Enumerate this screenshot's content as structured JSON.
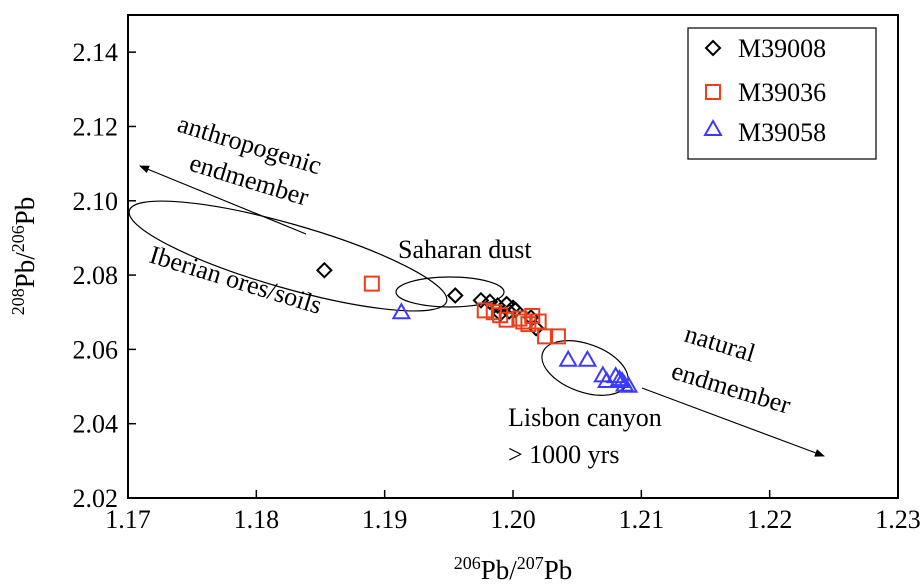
{
  "chart_data": {
    "type": "scatter",
    "title": "",
    "xlabel": {
      "base": "Pb",
      "num_sup": "206",
      "den_sup": "207"
    },
    "ylabel": {
      "base": "Pb",
      "num_sup": "208",
      "den_sup": "206"
    },
    "xlim": [
      1.17,
      1.23
    ],
    "ylim": [
      2.02,
      2.15
    ],
    "x_ticks": [
      1.17,
      1.18,
      1.19,
      1.2,
      1.21,
      1.22,
      1.23
    ],
    "y_ticks": [
      2.02,
      2.04,
      2.06,
      2.08,
      2.1,
      2.12,
      2.14
    ],
    "x_tick_labels": [
      "1.17",
      "1.18",
      "1.19",
      "1.20",
      "1.21",
      "1.22",
      "1.23"
    ],
    "y_tick_labels": [
      "2.02",
      "2.04",
      "2.06",
      "2.08",
      "2.10",
      "2.12",
      "2.14"
    ],
    "grid": false,
    "legend_position": "top-right",
    "series": [
      {
        "name": "M39008",
        "marker": "diamond",
        "color": "#000000",
        "points": [
          [
            1.1853,
            2.0813
          ],
          [
            1.1955,
            2.0745
          ],
          [
            1.1975,
            2.0732
          ],
          [
            1.1982,
            2.0728
          ],
          [
            1.1988,
            2.0718
          ],
          [
            1.199,
            2.0696
          ],
          [
            1.1995,
            2.0722
          ],
          [
            1.1997,
            2.0702
          ],
          [
            1.2,
            2.0712
          ],
          [
            1.2002,
            2.0706
          ],
          [
            1.2014,
            2.0686
          ],
          [
            1.2018,
            2.0657
          ]
        ]
      },
      {
        "name": "M39036",
        "marker": "square",
        "color": "#e8401c",
        "points": [
          [
            1.189,
            2.0777
          ],
          [
            1.1978,
            2.0705
          ],
          [
            1.1985,
            2.07
          ],
          [
            1.199,
            2.0692
          ],
          [
            1.1995,
            2.068
          ],
          [
            1.2005,
            2.0683
          ],
          [
            1.2008,
            2.0675
          ],
          [
            1.2012,
            2.0668
          ],
          [
            1.2015,
            2.069
          ],
          [
            1.202,
            2.0675
          ],
          [
            1.2025,
            2.0635
          ],
          [
            1.2035,
            2.0635
          ]
        ]
      },
      {
        "name": "M39058",
        "marker": "triangle",
        "color": "#3b3bff",
        "points": [
          [
            1.1913,
            2.07
          ],
          [
            1.2043,
            2.0572
          ],
          [
            1.2058,
            2.0572
          ],
          [
            1.207,
            2.053
          ],
          [
            1.2073,
            2.0515
          ],
          [
            1.208,
            2.0528
          ],
          [
            1.2083,
            2.052
          ],
          [
            1.2085,
            2.0515
          ],
          [
            1.2087,
            2.0505
          ],
          [
            1.209,
            2.0502
          ]
        ]
      }
    ],
    "annotations": [
      {
        "id": "anthropogenic",
        "lines": [
          "anthropogenic",
          "endmember"
        ]
      },
      {
        "id": "iberian",
        "lines": [
          "Iberian ores/soils"
        ]
      },
      {
        "id": "saharan",
        "lines": [
          "Saharan dust"
        ]
      },
      {
        "id": "lisbon",
        "lines": [
          "Lisbon canyon",
          "> 1000 yrs"
        ]
      },
      {
        "id": "natural",
        "lines": [
          "natural",
          "endmember"
        ]
      }
    ]
  }
}
